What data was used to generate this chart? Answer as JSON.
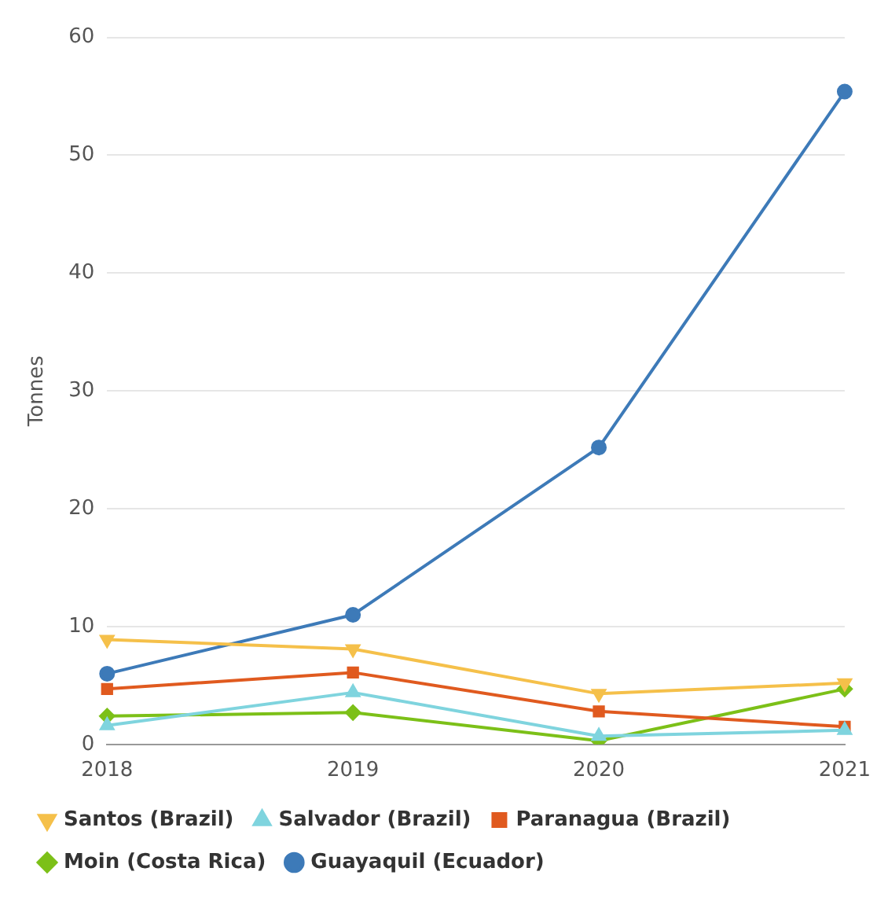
{
  "chart_data": {
    "type": "line",
    "ylabel": "Tonnes",
    "categories": [
      "2018",
      "2019",
      "2020",
      "2021"
    ],
    "series": [
      {
        "name": "Guayaquil (Ecuador)",
        "color": "#3d7ab8",
        "marker": "circle",
        "values": [
          6,
          11,
          25.2,
          55.4
        ]
      },
      {
        "name": "Moin (Costa Rica)",
        "color": "#7cc018",
        "marker": "diamond",
        "values": [
          2.4,
          2.7,
          0.3,
          4.7
        ]
      },
      {
        "name": "Paranagua (Brazil)",
        "color": "#e05a1f",
        "marker": "square",
        "values": [
          4.7,
          6.1,
          2.8,
          1.5
        ]
      },
      {
        "name": "Salvador (Brazil)",
        "color": "#7fd4de",
        "marker": "triangle",
        "values": [
          1.6,
          4.4,
          0.7,
          1.2
        ]
      },
      {
        "name": "Santos (Brazil)",
        "color": "#f5c04a",
        "marker": "triangle-down",
        "values": [
          8.9,
          8.1,
          4.3,
          5.2
        ]
      }
    ],
    "ylim": [
      0,
      60
    ],
    "yticks": [
      0,
      10,
      20,
      30,
      40,
      50,
      60
    ],
    "grid": "y",
    "legend": "bottom",
    "line_style": "solid"
  }
}
